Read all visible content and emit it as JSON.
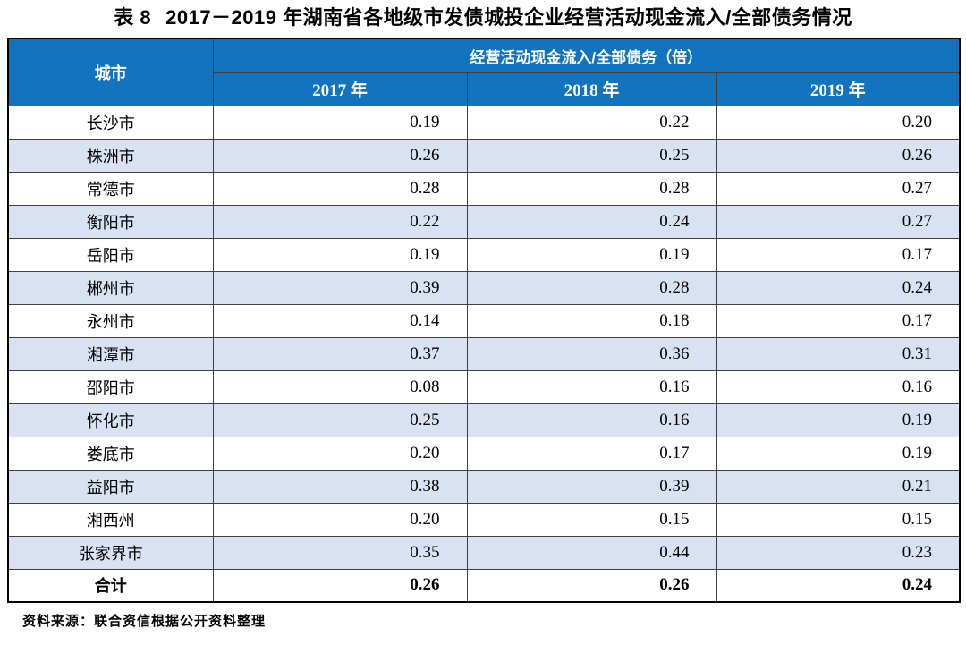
{
  "table_label": "表 8",
  "title": "2017－2019 年湖南省各地级市发债城投企业经营活动现金流入/全部债务情况",
  "table": {
    "city_header": "城市",
    "group_header": "经营活动现金流入/全部债务（倍）",
    "year_headers": [
      "2017 年",
      "2018 年",
      "2019 年"
    ],
    "rows": [
      {
        "city": "长沙市",
        "v2017": "0.19",
        "v2018": "0.22",
        "v2019": "0.20"
      },
      {
        "city": "株洲市",
        "v2017": "0.26",
        "v2018": "0.25",
        "v2019": "0.26"
      },
      {
        "city": "常德市",
        "v2017": "0.28",
        "v2018": "0.28",
        "v2019": "0.27"
      },
      {
        "city": "衡阳市",
        "v2017": "0.22",
        "v2018": "0.24",
        "v2019": "0.27"
      },
      {
        "city": "岳阳市",
        "v2017": "0.19",
        "v2018": "0.19",
        "v2019": "0.17"
      },
      {
        "city": "郴州市",
        "v2017": "0.39",
        "v2018": "0.28",
        "v2019": "0.24"
      },
      {
        "city": "永州市",
        "v2017": "0.14",
        "v2018": "0.18",
        "v2019": "0.17"
      },
      {
        "city": "湘潭市",
        "v2017": "0.37",
        "v2018": "0.36",
        "v2019": "0.31"
      },
      {
        "city": "邵阳市",
        "v2017": "0.08",
        "v2018": "0.16",
        "v2019": "0.16"
      },
      {
        "city": "怀化市",
        "v2017": "0.25",
        "v2018": "0.16",
        "v2019": "0.19"
      },
      {
        "city": "娄底市",
        "v2017": "0.20",
        "v2018": "0.17",
        "v2019": "0.19"
      },
      {
        "city": "益阳市",
        "v2017": "0.38",
        "v2018": "0.39",
        "v2019": "0.21"
      },
      {
        "city": "湘西州",
        "v2017": "0.20",
        "v2018": "0.15",
        "v2019": "0.15"
      },
      {
        "city": "张家界市",
        "v2017": "0.35",
        "v2018": "0.44",
        "v2019": "0.23"
      }
    ],
    "total_row": {
      "city": "合计",
      "v2017": "0.26",
      "v2018": "0.26",
      "v2019": "0.24"
    }
  },
  "source": "资料来源：联合资信根据公开资料整理",
  "colors": {
    "header_blue": "#1273be",
    "stripe_blue": "#d8e2f2",
    "border_inner": "#3f3f3f",
    "border_outer": "#000000",
    "header_text": "#ffffff"
  }
}
